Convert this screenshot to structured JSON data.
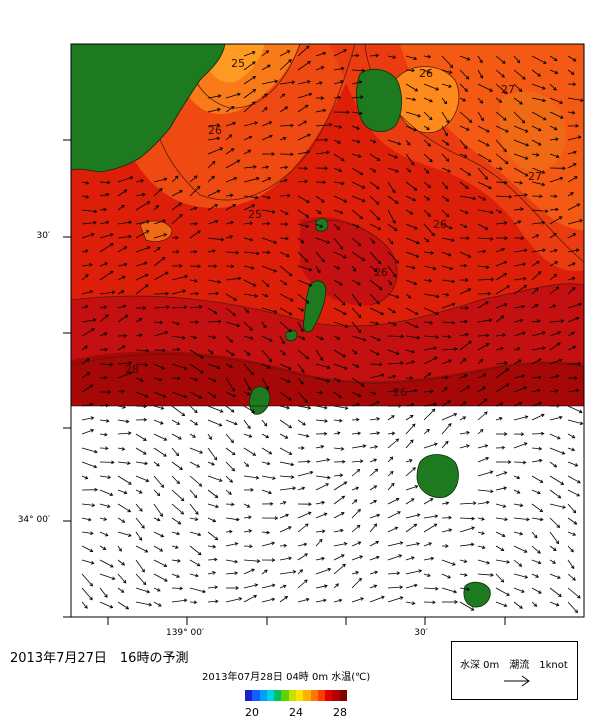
{
  "map": {
    "lat_labels": [
      "30′",
      "34° 00′"
    ],
    "lon_labels": [
      "139° 00′",
      "30′"
    ],
    "contour_labels": [
      "25",
      "26",
      "26",
      "27",
      "27",
      "25",
      "26",
      "28",
      "26",
      "26"
    ]
  },
  "forecast_title": "2013年7月27日　16時の予測",
  "data_caption": "2013年07月28日 04時 0m 水温(℃)",
  "colorbar": {
    "ticks": [
      "20",
      "24",
      "28"
    ],
    "colors": [
      "#2020c8",
      "#1060ff",
      "#00a0ff",
      "#00d0e0",
      "#00c060",
      "#60d000",
      "#c8e000",
      "#ffe000",
      "#ffb000",
      "#ff7800",
      "#ff3c00",
      "#e00000",
      "#b00000",
      "#800000"
    ]
  },
  "legend": {
    "label": "水深 0m　潮流　1knot"
  },
  "colors": {
    "land": "#1e7a1e",
    "sea_warm": "#dd1f0a",
    "sea_hot": "#b00808",
    "sea_orange": "#f05a10",
    "sea_light": "#ff8c1a"
  }
}
